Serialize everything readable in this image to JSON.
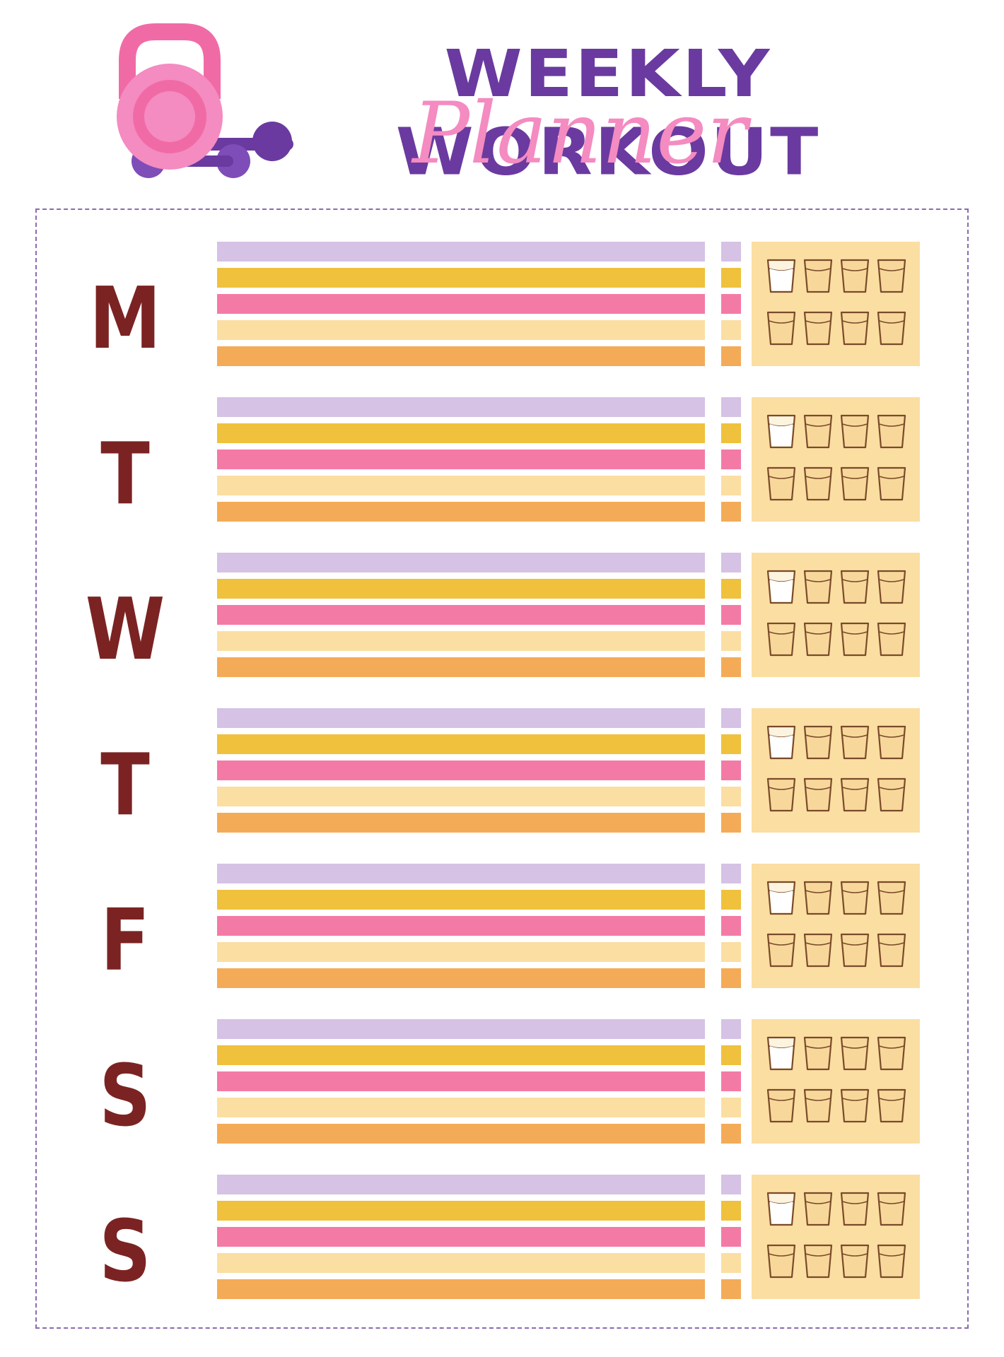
{
  "header": {
    "title": "WEEKLY WORKOUT",
    "subtitle": "Planner"
  },
  "logo": {
    "icon": "kettlebell-dumbbell-icon"
  },
  "days": [
    {
      "letter": "M"
    },
    {
      "letter": "T"
    },
    {
      "letter": "W"
    },
    {
      "letter": "T"
    },
    {
      "letter": "F"
    },
    {
      "letter": "S"
    },
    {
      "letter": "S"
    }
  ],
  "colors": {
    "title": "#6a3aa0",
    "subtitle": "#f48bc1",
    "day_letter": "#7b2323",
    "frame": "#8a6bb0",
    "rows": [
      "#d5c2e5",
      "#efc13c",
      "#f47aa6",
      "#fbdea2",
      "#f4ab57"
    ],
    "water_box": "#fbdea2",
    "glass_outline": "#7a4a2a"
  },
  "water_tracker": {
    "icon": "water-glass-icon",
    "glasses_per_day": 8
  }
}
